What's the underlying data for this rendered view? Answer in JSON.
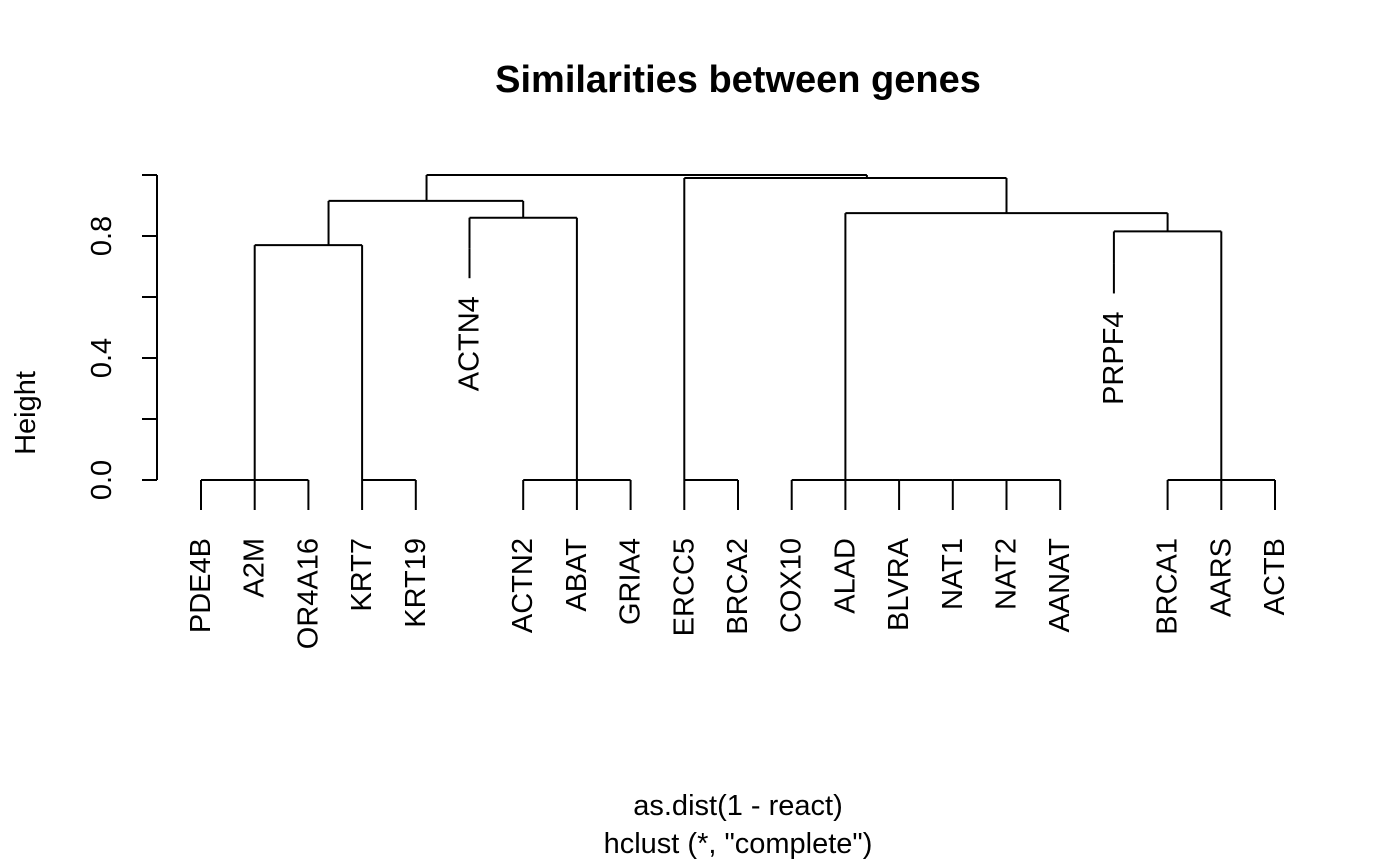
{
  "chart_data": {
    "type": "dendrogram",
    "title": "Similarities between genes",
    "ylabel": "Height",
    "xlabel": "as.dist(1 - react)",
    "sublabel": "hclust (*, \"complete\")",
    "ylim": [
      0,
      1
    ],
    "yticks": [
      0.0,
      0.2,
      0.4,
      0.6,
      0.8,
      1.0
    ],
    "ytick_labels": [
      {
        "value": 0.0,
        "text": "0.0"
      },
      {
        "value": 0.4,
        "text": "0.4"
      },
      {
        "value": 0.8,
        "text": "0.8"
      }
    ],
    "leaves": [
      {
        "label": "PDE4B",
        "x": 2
      },
      {
        "label": "A2M",
        "x": 3
      },
      {
        "label": "OR4A16",
        "x": 4
      },
      {
        "label": "KRT7",
        "x": 5
      },
      {
        "label": "KRT19",
        "x": 6
      },
      {
        "label": "ACTN4",
        "x": 7
      },
      {
        "label": "ACTN2",
        "x": 8
      },
      {
        "label": "ABAT",
        "x": 9
      },
      {
        "label": "GRIA4",
        "x": 10
      },
      {
        "label": "ERCC5",
        "x": 11
      },
      {
        "label": "BRCA2",
        "x": 12
      },
      {
        "label": "COX10",
        "x": 13
      },
      {
        "label": "ALAD",
        "x": 14
      },
      {
        "label": "BLVRA",
        "x": 15
      },
      {
        "label": "NAT1",
        "x": 16
      },
      {
        "label": "NAT2",
        "x": 17
      },
      {
        "label": "AANAT",
        "x": 18
      },
      {
        "label": "PRPF4",
        "x": 19
      },
      {
        "label": "BRCA1",
        "x": 20
      },
      {
        "label": "AARS",
        "x": 21
      },
      {
        "label": "ACTB",
        "x": 22
      }
    ],
    "merges": [
      {
        "x1": 2,
        "h1": 0,
        "x2": 3,
        "h2": 0,
        "height": 0
      },
      {
        "x1": 3,
        "h1": 0,
        "x2": 4,
        "h2": 0,
        "height": 0
      },
      {
        "x1": 5,
        "h1": 0,
        "x2": 6,
        "h2": 0,
        "height": 0
      },
      {
        "x1": 3,
        "h1": 0,
        "x2": 5,
        "h2": 0,
        "height": 0.77
      },
      {
        "x1": 8,
        "h1": 0,
        "x2": 9,
        "h2": 0,
        "height": 0
      },
      {
        "x1": 9,
        "h1": 0,
        "x2": 10,
        "h2": 0,
        "height": 0
      },
      {
        "x1": 7,
        "h1": 0.76,
        "x2": 9,
        "h2": 0,
        "height": 0.86
      },
      {
        "x1": 4.375,
        "h1": 0.77,
        "x2": 8,
        "h2": 0.86,
        "height": 0.915
      },
      {
        "x1": 11,
        "h1": 0,
        "x2": 12,
        "h2": 0,
        "height": 0
      },
      {
        "x1": 13,
        "h1": 0,
        "x2": 14,
        "h2": 0,
        "height": 0
      },
      {
        "x1": 14,
        "h1": 0,
        "x2": 15,
        "h2": 0,
        "height": 0
      },
      {
        "x1": 15,
        "h1": 0,
        "x2": 16,
        "h2": 0,
        "height": 0
      },
      {
        "x1": 16,
        "h1": 0,
        "x2": 17,
        "h2": 0,
        "height": 0
      },
      {
        "x1": 17,
        "h1": 0,
        "x2": 18,
        "h2": 0,
        "height": 0
      },
      {
        "x1": 20,
        "h1": 0,
        "x2": 21,
        "h2": 0,
        "height": 0
      },
      {
        "x1": 21,
        "h1": 0,
        "x2": 22,
        "h2": 0,
        "height": 0
      },
      {
        "x1": 19,
        "h1": 0.71,
        "x2": 21,
        "h2": 0,
        "height": 0.815
      },
      {
        "x1": 14,
        "h1": 0,
        "x2": 20,
        "h2": 0.815,
        "height": 0.875
      },
      {
        "x1": 11,
        "h1": 0,
        "x2": 17,
        "h2": 0.875,
        "height": 0.99
      },
      {
        "x1": 6.2,
        "h1": 0.915,
        "x2": 14.4,
        "h2": 0.99,
        "height": 1.0
      }
    ]
  }
}
